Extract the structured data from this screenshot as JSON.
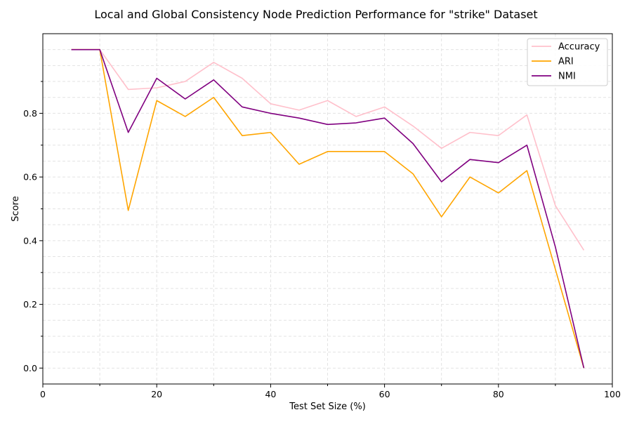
{
  "chart_data": {
    "type": "line",
    "title": "Local and Global Consistency Node Prediction Performance for \"strike\" Dataset",
    "xlabel": "Test Set Size (%)",
    "ylabel": "Score",
    "xlim": [
      0,
      100
    ],
    "ylim": [
      -0.05,
      1.05
    ],
    "xticks": [
      0,
      20,
      40,
      60,
      80,
      100
    ],
    "yticks": [
      0.0,
      0.2,
      0.4,
      0.6,
      0.8
    ],
    "grid": true,
    "legend_position": "top-right",
    "x": [
      5,
      10,
      15,
      20,
      25,
      30,
      35,
      40,
      45,
      50,
      55,
      60,
      65,
      70,
      75,
      80,
      85,
      90,
      95
    ],
    "series": [
      {
        "name": "Accuracy",
        "color": "#ffc0cb",
        "values": [
          1.0,
          1.0,
          0.875,
          0.88,
          0.9,
          0.96,
          0.91,
          0.83,
          0.81,
          0.84,
          0.79,
          0.82,
          0.76,
          0.69,
          0.74,
          0.73,
          0.795,
          0.51,
          0.37
        ]
      },
      {
        "name": "ARI",
        "color": "#ffa500",
        "values": [
          1.0,
          1.0,
          0.495,
          0.84,
          0.79,
          0.85,
          0.73,
          0.74,
          0.64,
          0.68,
          0.68,
          0.68,
          0.61,
          0.475,
          0.6,
          0.55,
          0.62,
          0.31,
          0.0
        ]
      },
      {
        "name": "NMI",
        "color": "#800080",
        "values": [
          1.0,
          1.0,
          0.74,
          0.91,
          0.845,
          0.905,
          0.82,
          0.8,
          0.785,
          0.765,
          0.77,
          0.785,
          0.705,
          0.585,
          0.655,
          0.645,
          0.7,
          0.38,
          0.0
        ]
      }
    ]
  }
}
